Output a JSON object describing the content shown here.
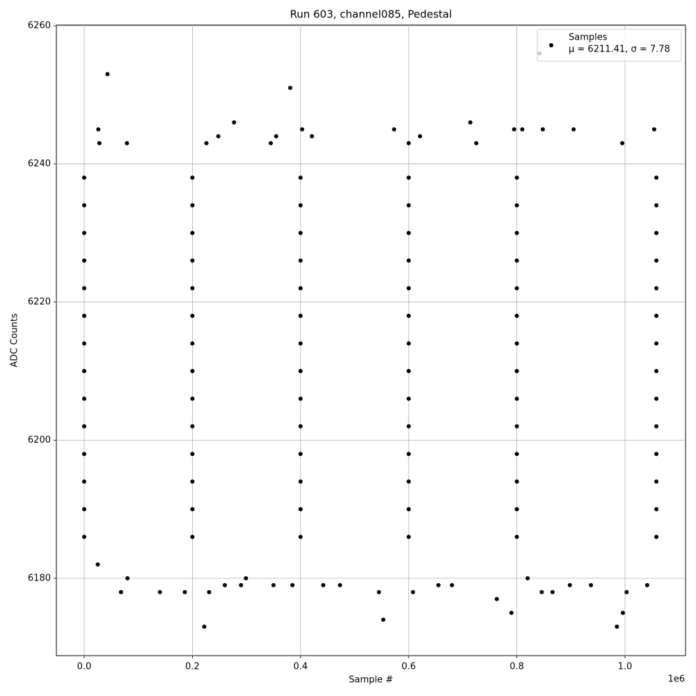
{
  "chart_data": {
    "type": "scatter",
    "title": "Run 603, channel085, Pedestal",
    "x_label": "Sample #",
    "y_label": "ADC Counts",
    "x_offset_label": "1e6",
    "xlim": [
      -51500,
      1112000
    ],
    "ylim": [
      6168.8,
      6260.1
    ],
    "xticks": [
      {
        "value": 0,
        "label": "0.0"
      },
      {
        "value": 200000,
        "label": "0.2"
      },
      {
        "value": 400000,
        "label": "0.4"
      },
      {
        "value": 600000,
        "label": "0.6"
      },
      {
        "value": 800000,
        "label": "0.8"
      },
      {
        "value": 1000000,
        "label": "1.0"
      }
    ],
    "yticks": [
      6180,
      6200,
      6220,
      6240,
      6260
    ],
    "grid": true,
    "legend": "upper right",
    "stats": "μ = 6211.41, σ = 7.78",
    "series": [
      {
        "name": "Samples",
        "color": "#000000",
        "x": [
          0,
          200000,
          400000,
          600000,
          800000,
          1058000,
          0,
          200000,
          400000,
          600000,
          800000,
          1058000,
          0,
          200000,
          400000,
          600000,
          800000,
          1058000,
          0,
          200000,
          400000,
          600000,
          800000,
          1058000,
          0,
          200000,
          400000,
          600000,
          800000,
          1058000,
          0,
          200000,
          400000,
          600000,
          800000,
          1058000,
          0,
          200000,
          400000,
          600000,
          800000,
          1058000,
          0,
          200000,
          400000,
          600000,
          800000,
          1058000,
          0,
          200000,
          400000,
          600000,
          800000,
          1058000,
          0,
          200000,
          400000,
          600000,
          800000,
          1058000,
          0,
          200000,
          400000,
          600000,
          800000,
          1058000,
          0,
          200000,
          400000,
          600000,
          800000,
          1058000,
          0,
          200000,
          400000,
          600000,
          800000,
          1058000,
          0,
          200000,
          400000,
          600000,
          800000,
          1058000,
          43000,
          381000,
          842000,
          26000,
          277000,
          403000,
          573000,
          714000,
          1054000,
          795000,
          810000,
          848000,
          905000,
          222000,
          553000,
          985000,
          996000,
          790000,
          763000,
          68000,
          140000,
          186000,
          231000,
          545000,
          608000,
          1003000,
          846000,
          866000,
          80000,
          299000,
          820000,
          248000,
          355000,
          421000,
          621000,
          226000,
          79000,
          345000,
          725000,
          995000,
          28000,
          600000,
          25000,
          260000,
          290000,
          385000,
          442000,
          473000,
          655000,
          680000,
          898000,
          937000,
          1041000,
          350000
        ],
        "values": [
          6186,
          6186,
          6186,
          6186,
          6186,
          6186,
          6190,
          6190,
          6190,
          6190,
          6190,
          6190,
          6194,
          6194,
          6194,
          6194,
          6194,
          6194,
          6198,
          6198,
          6198,
          6198,
          6198,
          6198,
          6202,
          6202,
          6202,
          6202,
          6202,
          6202,
          6206,
          6206,
          6206,
          6206,
          6206,
          6206,
          6210,
          6210,
          6210,
          6210,
          6210,
          6210,
          6214,
          6214,
          6214,
          6214,
          6214,
          6214,
          6218,
          6218,
          6218,
          6218,
          6218,
          6218,
          6222,
          6222,
          6222,
          6222,
          6222,
          6222,
          6226,
          6226,
          6226,
          6226,
          6226,
          6226,
          6230,
          6230,
          6230,
          6230,
          6230,
          6230,
          6234,
          6234,
          6234,
          6234,
          6234,
          6234,
          6238,
          6238,
          6238,
          6238,
          6238,
          6238,
          6253,
          6251,
          6256,
          6245,
          6246,
          6245,
          6245,
          6246,
          6245,
          6245,
          6245,
          6245,
          6245,
          6173,
          6174,
          6173,
          6175,
          6175,
          6177,
          6178,
          6178,
          6178,
          6178,
          6178,
          6178,
          6178,
          6178,
          6178,
          6180,
          6180,
          6180,
          6244,
          6244,
          6244,
          6244,
          6243,
          6243,
          6243,
          6243,
          6243,
          6243,
          6243,
          6182,
          6179,
          6179,
          6179,
          6179,
          6179,
          6179,
          6179,
          6179,
          6179,
          6179,
          6179
        ]
      }
    ]
  }
}
